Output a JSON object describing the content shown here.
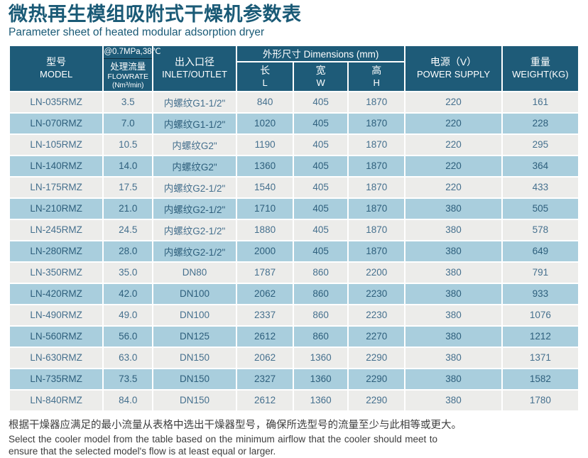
{
  "title": {
    "zh": "微热再生模组吸附式干燥机参数表",
    "en": "Parameter sheet of heated modular adsorption dryer"
  },
  "table": {
    "headers": {
      "model": {
        "zh": "型号",
        "en": "MODEL"
      },
      "flowrate": {
        "condition": "@0.7MPa,38℃",
        "zh": "处理流量",
        "en": "FLOWRATE",
        "unit": "(Nm³/min)"
      },
      "inlet": {
        "zh": "出入口径",
        "en": "INLET/OUTLET"
      },
      "dimensions": {
        "label": "外形尺寸 Dimensions (mm)",
        "length": {
          "zh": "长",
          "en": "L"
        },
        "width": {
          "zh": "宽",
          "en": "W"
        },
        "height": {
          "zh": "高",
          "en": "H"
        }
      },
      "power": {
        "zh": "电源（V）",
        "en": "POWER SUPPLY"
      },
      "weight": {
        "zh": "重量",
        "en": "WEIGHT(KG)"
      }
    },
    "rows": [
      [
        "LN-035RMZ",
        "3.5",
        "内螺纹G1-1/2\"",
        "840",
        "405",
        "1870",
        "220",
        "161"
      ],
      [
        "LN-070RMZ",
        "7.0",
        "内螺纹G1-1/2\"",
        "1020",
        "405",
        "1870",
        "220",
        "228"
      ],
      [
        "LN-105RMZ",
        "10.5",
        "内螺纹G2\"",
        "1190",
        "405",
        "1870",
        "220",
        "295"
      ],
      [
        "LN-140RMZ",
        "14.0",
        "内螺纹G2\"",
        "1360",
        "405",
        "1870",
        "220",
        "364"
      ],
      [
        "LN-175RMZ",
        "17.5",
        "内螺纹G2-1/2\"",
        "1540",
        "405",
        "1870",
        "220",
        "433"
      ],
      [
        "LN-210RMZ",
        "21.0",
        "内螺纹G2-1/2\"",
        "1710",
        "405",
        "1870",
        "380",
        "505"
      ],
      [
        "LN-245RMZ",
        "24.5",
        "内螺纹G2-1/2\"",
        "1880",
        "405",
        "1870",
        "380",
        "578"
      ],
      [
        "LN-280RMZ",
        "28.0",
        "内螺纹G2-1/2\"",
        "2000",
        "405",
        "1870",
        "380",
        "649"
      ],
      [
        "LN-350RMZ",
        "35.0",
        "DN80",
        "1787",
        "860",
        "2200",
        "380",
        "791"
      ],
      [
        "LN-420RMZ",
        "42.0",
        "DN100",
        "2062",
        "860",
        "2230",
        "380",
        "933"
      ],
      [
        "LN-490RMZ",
        "49.0",
        "DN100",
        "2337",
        "860",
        "2230",
        "380",
        "1076"
      ],
      [
        "LN-560RMZ",
        "56.0",
        "DN125",
        "2612",
        "860",
        "2270",
        "380",
        "1212"
      ],
      [
        "LN-630RMZ",
        "63.0",
        "DN150",
        "2062",
        "1360",
        "2290",
        "380",
        "1371"
      ],
      [
        "LN-735RMZ",
        "73.5",
        "DN150",
        "2327",
        "1360",
        "2290",
        "380",
        "1582"
      ],
      [
        "LN-840RMZ",
        "84.0",
        "DN150",
        "2612",
        "1360",
        "2290",
        "380",
        "1780"
      ]
    ]
  },
  "footer": {
    "zh": "根据干燥器应满足的最小流量从表格中选出干燥器型号，确保所选型号的流量至少与此相等或更大。",
    "en": "Select the cooler model from the table based on the minimum airflow that the cooler should meet to ensure that the selected model's flow is at least equal or larger."
  },
  "colors": {
    "header_bg": "#1e5b78",
    "title_text": "#1a5a76",
    "row_gray": "#ececea",
    "row_blue": "#a9cedd",
    "cell_text_gray_row": "#45708e",
    "cell_text_blue_row": "#2e5f7c",
    "condition_divider": "#0f2e3e",
    "footnote_text": "#3d3d3d"
  }
}
